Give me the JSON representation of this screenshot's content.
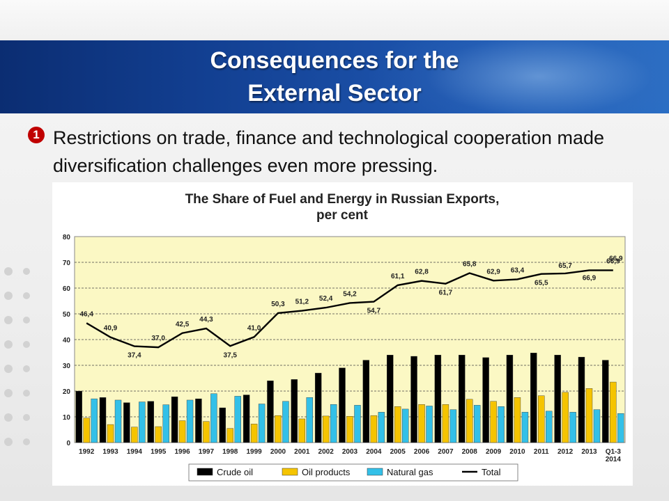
{
  "slide": {
    "title_line1": "Consequences for the",
    "title_line2": "External Sector",
    "bullet_icon": "1",
    "bullet_text": "Restrictions on trade, finance and technological cooperation made diversification challenges even more pressing."
  },
  "chart_data": {
    "type": "bar",
    "title": "The Share of Fuel and Energy in Russian Exports,",
    "subtitle": "per cent",
    "ylim": [
      0,
      80
    ],
    "yticks": [
      0,
      10,
      20,
      30,
      40,
      50,
      60,
      70,
      80
    ],
    "grid": true,
    "legend_position": "bottom",
    "categories": [
      "1992",
      "1993",
      "1994",
      "1995",
      "1996",
      "1997",
      "1998",
      "1999",
      "2000",
      "2001",
      "2002",
      "2003",
      "2004",
      "2005",
      "2006",
      "2007",
      "2008",
      "2009",
      "2010",
      "2011",
      "2012",
      "2013",
      "Q1-3 2014"
    ],
    "category_labels": [
      [
        "1992"
      ],
      [
        "1993"
      ],
      [
        "1994"
      ],
      [
        "1995"
      ],
      [
        "1996"
      ],
      [
        "1997"
      ],
      [
        "1998"
      ],
      [
        "1999"
      ],
      [
        "2000"
      ],
      [
        "2001"
      ],
      [
        "2002"
      ],
      [
        "2003"
      ],
      [
        "2004"
      ],
      [
        "2005"
      ],
      [
        "2006"
      ],
      [
        "2007"
      ],
      [
        "2008"
      ],
      [
        "2009"
      ],
      [
        "2010"
      ],
      [
        "2011"
      ],
      [
        "2012"
      ],
      [
        "2013"
      ],
      [
        "Q1-3",
        "2014"
      ]
    ],
    "series": [
      {
        "name": "Crude oil",
        "type": "bar",
        "color": "#000000",
        "values": [
          20,
          17.5,
          15.5,
          16,
          17.8,
          17,
          13.5,
          18.5,
          24,
          24.5,
          27,
          29,
          32,
          34,
          33.5,
          34,
          34,
          33,
          34,
          34.8,
          34,
          33.2,
          32
        ]
      },
      {
        "name": "Oil products",
        "type": "bar",
        "color": "#f5c400",
        "values": [
          9.5,
          7,
          6,
          6.2,
          8.5,
          8.2,
          5.5,
          7.2,
          10.5,
          9.2,
          10.3,
          10.2,
          10.5,
          14,
          14.8,
          14.8,
          16.8,
          16,
          17.5,
          18.2,
          19.5,
          21,
          23.5
        ]
      },
      {
        "name": "Natural gas",
        "type": "bar",
        "color": "#33c0e8",
        "values": [
          17,
          16.5,
          15.8,
          14.7,
          16.5,
          19,
          18,
          15,
          16,
          17.5,
          14.8,
          14.5,
          11.8,
          13,
          14.2,
          12.8,
          14.5,
          14,
          11.8,
          12.2,
          11.8,
          12.8,
          11.3
        ]
      },
      {
        "name": "Total",
        "type": "line",
        "color": "#000000",
        "values": [
          46.4,
          40.9,
          37.4,
          37.0,
          42.5,
          44.3,
          37.5,
          41.0,
          50.3,
          51.2,
          52.4,
          54.2,
          54.7,
          61.1,
          62.8,
          61.7,
          65.8,
          62.9,
          63.4,
          65.5,
          65.7,
          66.9,
          66.9
        ]
      }
    ],
    "total_labels": [
      "46,4",
      "40,9",
      "37,4",
      "37,0",
      "42,5",
      "44,3",
      "37,5",
      "41,0",
      "50,3",
      "51,2",
      "52,4",
      "54,2",
      "54,7",
      "61,1",
      "62,8",
      "61,7",
      "65,8",
      "62,9",
      "63,4",
      "65,5",
      "65,7",
      "66,9",
      "66,9"
    ],
    "extra_label": "66,9"
  },
  "colors": {
    "banner": "#123f91",
    "plot_background": "#fbf8c4",
    "accent_red": "#c00000"
  }
}
